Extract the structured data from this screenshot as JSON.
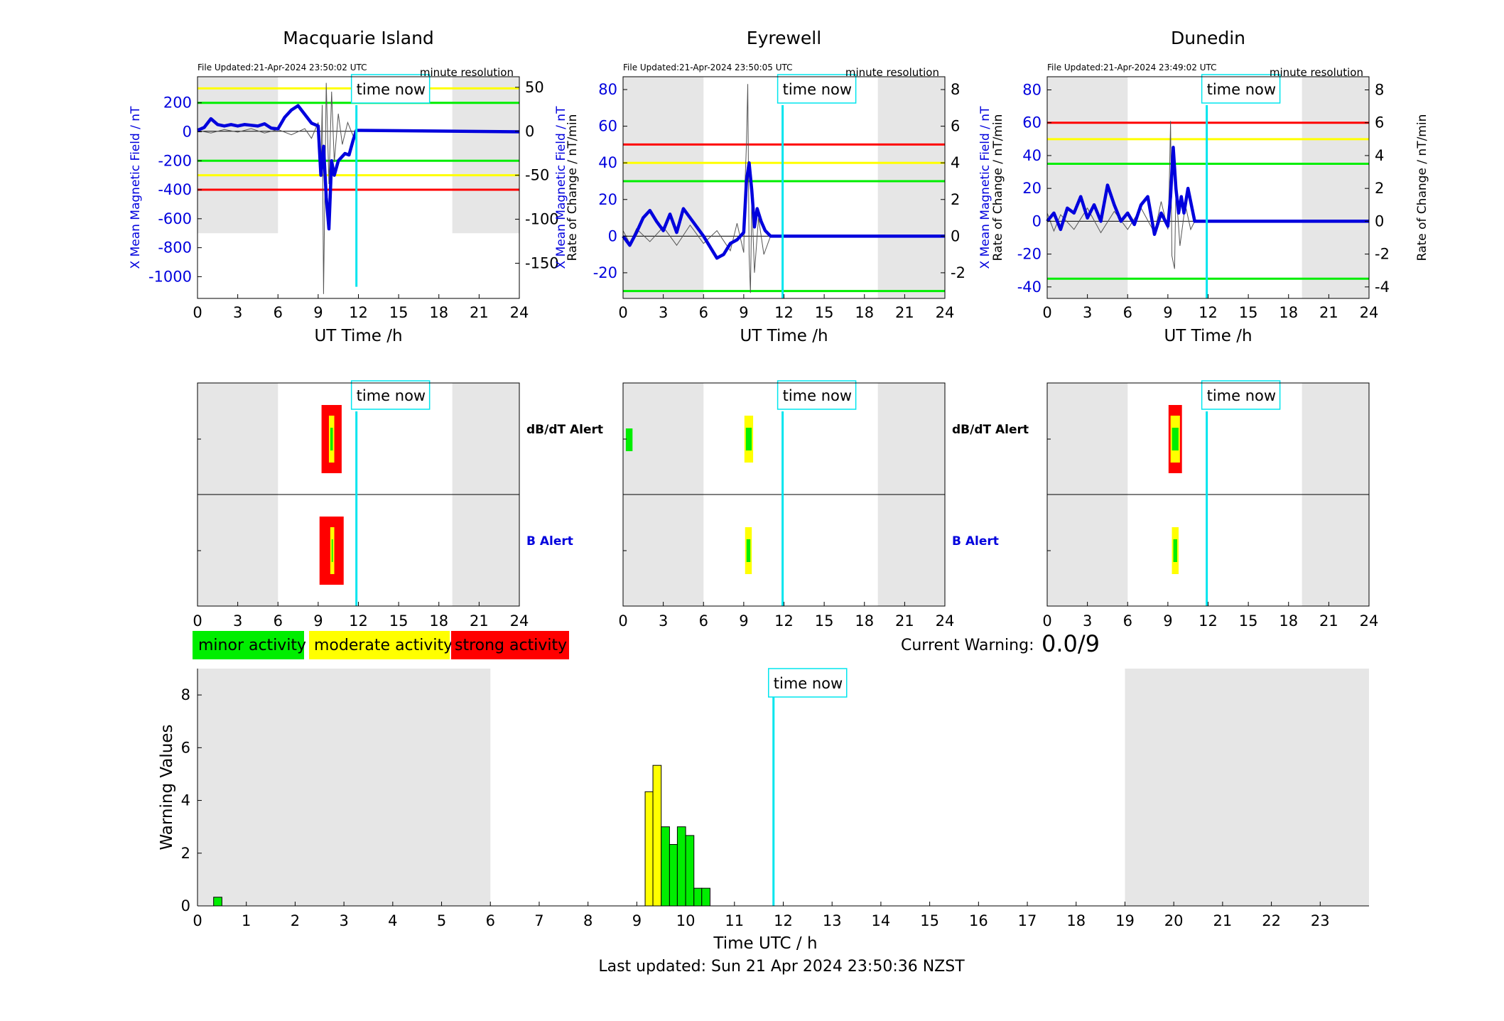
{
  "footer": {
    "last_updated": "Last updated: Sun 21 Apr 2024 23:50:36 NZST"
  },
  "colors": {
    "minor": "#00ee00",
    "moderate": "#ffff00",
    "strong": "#ff0000",
    "mean": "#0000dd",
    "now": "#00e5ee",
    "night": "#e6e6e6",
    "rate": "#555555"
  },
  "legend": [
    {
      "label": "minor activity",
      "color": "#00ee00"
    },
    {
      "label": "moderate activity",
      "color": "#ffff00"
    },
    {
      "label": "strong activity",
      "color": "#ff0000"
    }
  ],
  "current_warning": {
    "label": "Current Warning:",
    "value": "0.0/9"
  },
  "time_now_label": "time now",
  "chart_data": [
    {
      "type": "line",
      "title": "Macquarie Island",
      "file_updated": "File Updated:21-Apr-2024 23:50:02 UTC",
      "resolution": "minute resolution",
      "xlabel": "UT Time /h",
      "ylabel": "X Mean Magnetic Field / nT",
      "y2label": "Rate of Change / nT/min",
      "xlim": [
        0,
        24
      ],
      "xticks": [
        0,
        3,
        6,
        9,
        12,
        15,
        18,
        21,
        24
      ],
      "ylim": [
        -1150,
        380
      ],
      "yticks": [
        200,
        0,
        -200,
        -400,
        -600,
        -800,
        -1000
      ],
      "y2lim": [
        -190,
        62
      ],
      "y2ticks": [
        50,
        0,
        -50,
        -100,
        -150
      ],
      "night": [
        [
          0,
          6,
          -700
        ],
        [
          19,
          24,
          -700
        ]
      ],
      "thresholds": [
        {
          "level": 300,
          "color": "yellow"
        },
        {
          "level": 200,
          "color": "green"
        },
        {
          "level": -200,
          "color": "green"
        },
        {
          "level": -300,
          "color": "yellow"
        },
        {
          "level": -400,
          "color": "red"
        }
      ],
      "now_hour": 11.85,
      "now_line_bottom": -1070,
      "mean": [
        [
          0,
          10
        ],
        [
          0.5,
          30
        ],
        [
          1,
          90
        ],
        [
          1.5,
          50
        ],
        [
          2,
          40
        ],
        [
          2.5,
          50
        ],
        [
          3,
          40
        ],
        [
          3.5,
          50
        ],
        [
          4,
          45
        ],
        [
          4.5,
          40
        ],
        [
          5,
          55
        ],
        [
          5.5,
          25
        ],
        [
          6,
          20
        ],
        [
          6.5,
          100
        ],
        [
          7,
          150
        ],
        [
          7.5,
          180
        ],
        [
          8,
          120
        ],
        [
          8.5,
          60
        ],
        [
          9,
          40
        ],
        [
          9.2,
          -300
        ],
        [
          9.4,
          -100
        ],
        [
          9.6,
          -450
        ],
        [
          9.8,
          -670
        ],
        [
          10,
          -200
        ],
        [
          10.2,
          -300
        ],
        [
          10.5,
          -200
        ],
        [
          11,
          -150
        ],
        [
          11.3,
          -160
        ],
        [
          11.6,
          -60
        ],
        [
          11.85,
          10
        ],
        [
          24,
          0
        ]
      ],
      "rate": [
        [
          0,
          1
        ],
        [
          1,
          -2
        ],
        [
          2,
          2
        ],
        [
          3,
          -1
        ],
        [
          4,
          3
        ],
        [
          5,
          -2
        ],
        [
          6,
          2
        ],
        [
          7,
          -4
        ],
        [
          8,
          3
        ],
        [
          8.5,
          -8
        ],
        [
          9,
          10
        ],
        [
          9.2,
          -40
        ],
        [
          9.3,
          30
        ],
        [
          9.4,
          -185
        ],
        [
          9.6,
          55
        ],
        [
          9.8,
          -60
        ],
        [
          10,
          45
        ],
        [
          10.2,
          -35
        ],
        [
          10.5,
          20
        ],
        [
          10.8,
          -15
        ],
        [
          11.2,
          10
        ],
        [
          11.6,
          -5
        ],
        [
          11.85,
          0
        ]
      ],
      "alerts": {
        "dbdt": [
          [
            9.25,
            9.8,
            10.2,
            10.75
          ]
        ],
        "b": [
          [
            9.1,
            9.9,
            10.2,
            10.9
          ]
        ]
      }
    },
    {
      "type": "line",
      "title": "Eyrewell",
      "file_updated": "File Updated:21-Apr-2024 23:50:05 UTC",
      "resolution": "minute resolution",
      "xlabel": "UT Time /h",
      "ylabel": "X Mean Magnetic Field / nT",
      "y2label": "Rate of Change / nT/min",
      "xlim": [
        0,
        24
      ],
      "xticks": [
        0,
        3,
        6,
        9,
        12,
        15,
        18,
        21,
        24
      ],
      "ylim": [
        -34,
        87
      ],
      "yticks": [
        80,
        60,
        40,
        20,
        0,
        -20
      ],
      "y2lim": [
        -3.4,
        8.7
      ],
      "y2ticks": [
        8,
        6,
        4,
        2,
        0,
        -2
      ],
      "night": [
        [
          0,
          6,
          -34
        ],
        [
          19,
          24,
          -34
        ]
      ],
      "thresholds": [
        {
          "level": 50,
          "color": "red"
        },
        {
          "level": 40,
          "color": "yellow"
        },
        {
          "level": 30,
          "color": "green"
        },
        {
          "level": -30,
          "color": "green"
        }
      ],
      "now_hour": 11.9,
      "now_line_bottom": -34,
      "mean": [
        [
          0,
          0
        ],
        [
          0.5,
          -5
        ],
        [
          1,
          2
        ],
        [
          1.5,
          10
        ],
        [
          2,
          14
        ],
        [
          2.5,
          8
        ],
        [
          3,
          3
        ],
        [
          3.5,
          12
        ],
        [
          4,
          2
        ],
        [
          4.5,
          15
        ],
        [
          5,
          10
        ],
        [
          5.5,
          5
        ],
        [
          6,
          0
        ],
        [
          6.5,
          -6
        ],
        [
          7,
          -12
        ],
        [
          7.5,
          -10
        ],
        [
          8,
          -4
        ],
        [
          8.5,
          -2
        ],
        [
          9,
          2
        ],
        [
          9.2,
          30
        ],
        [
          9.4,
          40
        ],
        [
          9.6,
          25
        ],
        [
          9.8,
          5
        ],
        [
          10,
          15
        ],
        [
          10.3,
          8
        ],
        [
          10.6,
          3
        ],
        [
          11,
          0
        ],
        [
          24,
          0
        ]
      ],
      "rate": [
        [
          0,
          0.3
        ],
        [
          0.5,
          -0.4
        ],
        [
          1,
          0.4
        ],
        [
          2,
          -0.3
        ],
        [
          3,
          0.5
        ],
        [
          4,
          -0.5
        ],
        [
          5,
          0.6
        ],
        [
          6,
          -0.4
        ],
        [
          7,
          0.3
        ],
        [
          8,
          -0.8
        ],
        [
          8.5,
          0.7
        ],
        [
          9,
          -0.9
        ],
        [
          9.1,
          3
        ],
        [
          9.2,
          5
        ],
        [
          9.3,
          8.3
        ],
        [
          9.4,
          -1
        ],
        [
          9.5,
          -3.1
        ],
        [
          9.6,
          2
        ],
        [
          9.8,
          -2
        ],
        [
          10.1,
          1
        ],
        [
          10.5,
          -1
        ],
        [
          11,
          0
        ]
      ],
      "alerts": {
        "dbdt": [
          [
            null,
            9.05,
            9.7,
            null
          ]
        ],
        "b": [
          [
            null,
            9.1,
            9.6,
            null
          ]
        ],
        "dbdt_extra": [
          0.1,
          0.6
        ]
      }
    },
    {
      "type": "line",
      "title": "Dunedin",
      "file_updated": "File Updated:21-Apr-2024 23:49:02 UTC",
      "resolution": "minute resolution",
      "xlabel": "UT Time /h",
      "ylabel": "X Mean Magnetic Field / nT",
      "y2label": "Rate of Change / nT/min",
      "xlim": [
        0,
        24
      ],
      "xticks": [
        0,
        3,
        6,
        9,
        12,
        15,
        18,
        21,
        24
      ],
      "ylim": [
        -47,
        88
      ],
      "yticks": [
        80,
        60,
        40,
        20,
        0,
        -20,
        -40
      ],
      "y2lim": [
        -4.7,
        8.8
      ],
      "y2ticks": [
        8,
        6,
        4,
        2,
        0,
        -2,
        -4
      ],
      "night": [
        [
          0,
          6,
          -47
        ],
        [
          19,
          24,
          -47
        ]
      ],
      "thresholds": [
        {
          "level": 60,
          "color": "red"
        },
        {
          "level": 50,
          "color": "yellow"
        },
        {
          "level": 35,
          "color": "green"
        },
        {
          "level": -35,
          "color": "green"
        }
      ],
      "now_hour": 11.9,
      "now_line_bottom": -47,
      "mean": [
        [
          0,
          0
        ],
        [
          0.5,
          5
        ],
        [
          1,
          -5
        ],
        [
          1.5,
          8
        ],
        [
          2,
          5
        ],
        [
          2.5,
          15
        ],
        [
          3,
          2
        ],
        [
          3.5,
          10
        ],
        [
          4,
          0
        ],
        [
          4.5,
          22
        ],
        [
          5,
          10
        ],
        [
          5.5,
          0
        ],
        [
          6,
          5
        ],
        [
          6.5,
          -2
        ],
        [
          7,
          10
        ],
        [
          7.5,
          15
        ],
        [
          8,
          -8
        ],
        [
          8.5,
          5
        ],
        [
          9,
          -3
        ],
        [
          9.2,
          15
        ],
        [
          9.4,
          45
        ],
        [
          9.6,
          20
        ],
        [
          9.8,
          5
        ],
        [
          10,
          15
        ],
        [
          10.2,
          5
        ],
        [
          10.5,
          20
        ],
        [
          10.8,
          8
        ],
        [
          11,
          0
        ],
        [
          24,
          0
        ]
      ],
      "rate": [
        [
          0,
          0.5
        ],
        [
          0.5,
          -0.6
        ],
        [
          1,
          0.4
        ],
        [
          2,
          -0.5
        ],
        [
          3,
          0.8
        ],
        [
          4,
          -0.7
        ],
        [
          5,
          0.6
        ],
        [
          6,
          -0.5
        ],
        [
          7,
          0.8
        ],
        [
          8,
          -0.7
        ],
        [
          8.5,
          1.2
        ],
        [
          9,
          -0.5
        ],
        [
          9.1,
          2
        ],
        [
          9.2,
          6.1
        ],
        [
          9.3,
          -2.1
        ],
        [
          9.5,
          -2.9
        ],
        [
          9.6,
          2
        ],
        [
          9.9,
          -1.5
        ],
        [
          10.3,
          1
        ],
        [
          10.7,
          -0.5
        ],
        [
          11,
          0
        ]
      ],
      "alerts": {
        "dbdt": [
          [
            9.05,
            9.2,
            9.9,
            10.05
          ]
        ],
        "b": [
          [
            null,
            9.3,
            9.8,
            null
          ]
        ]
      }
    },
    {
      "type": "bar",
      "title": "",
      "xlabel": "Time UTC / h",
      "ylabel": "Warning Values",
      "xlim": [
        0,
        24
      ],
      "xticks": [
        0,
        1,
        2,
        3,
        4,
        5,
        6,
        7,
        8,
        9,
        10,
        11,
        12,
        13,
        14,
        15,
        16,
        17,
        18,
        19,
        20,
        21,
        22,
        23
      ],
      "ylim": [
        0,
        9
      ],
      "yticks": [
        0,
        2,
        4,
        6,
        8
      ],
      "night": [
        [
          0,
          6
        ],
        [
          19,
          24
        ]
      ],
      "now_hour": 11.8,
      "bars": [
        {
          "x0": 0.33,
          "x1": 0.5,
          "value": 0.33,
          "color": "green"
        },
        {
          "x0": 9.17,
          "x1": 9.33,
          "value": 4.33,
          "color": "yellow"
        },
        {
          "x0": 9.33,
          "x1": 9.5,
          "value": 5.33,
          "color": "yellow"
        },
        {
          "x0": 9.5,
          "x1": 9.67,
          "value": 3.0,
          "color": "green"
        },
        {
          "x0": 9.67,
          "x1": 9.83,
          "value": 2.33,
          "color": "green"
        },
        {
          "x0": 9.83,
          "x1": 10.0,
          "value": 3.0,
          "color": "green"
        },
        {
          "x0": 10.0,
          "x1": 10.17,
          "value": 2.67,
          "color": "green"
        },
        {
          "x0": 10.17,
          "x1": 10.33,
          "value": 0.67,
          "color": "green"
        },
        {
          "x0": 10.33,
          "x1": 10.5,
          "value": 0.67,
          "color": "green"
        }
      ]
    }
  ],
  "alert_labels": {
    "dbdt": "dB/dT Alert",
    "b": "B Alert"
  }
}
